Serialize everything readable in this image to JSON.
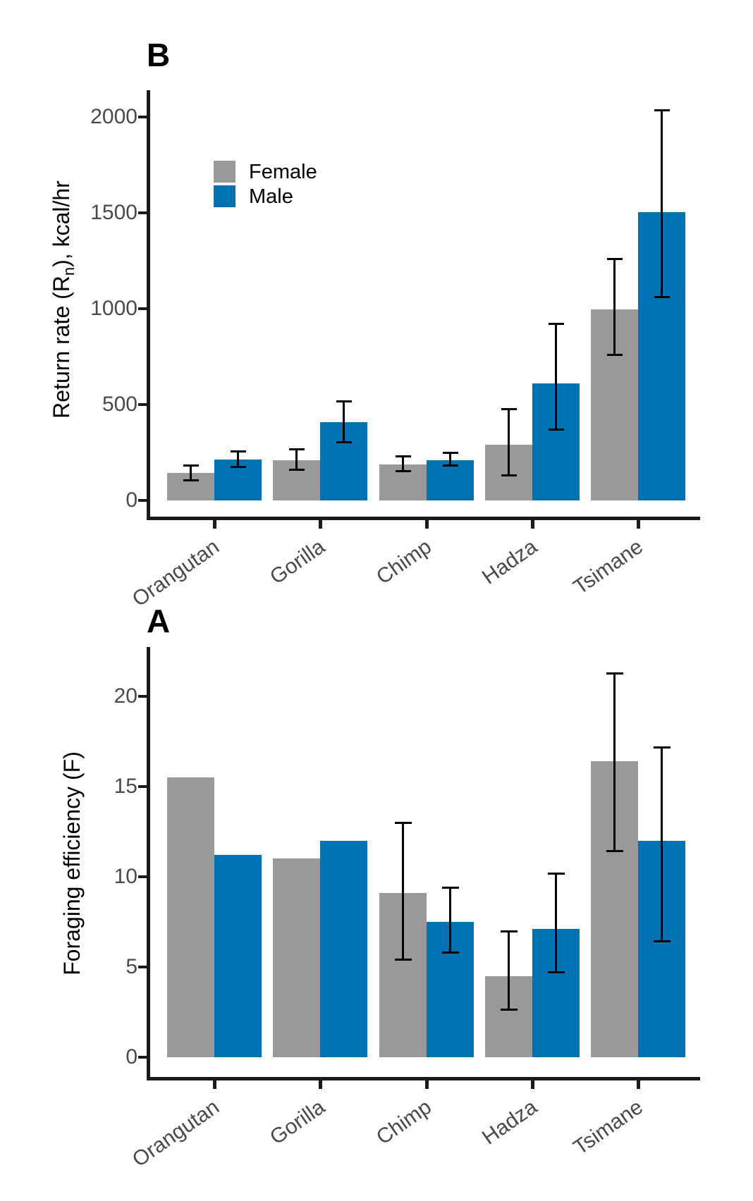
{
  "figure": {
    "background": "#ffffff",
    "axis_color": "#1b1b1b",
    "tick_text_color": "#4a4a4a"
  },
  "legend": {
    "position": "inside-top-left-of-panel-B",
    "items": [
      {
        "label": "Female",
        "color": "#999999"
      },
      {
        "label": "Male",
        "color": "#0072B2"
      }
    ]
  },
  "chart_data": [
    {
      "id": "panel-b",
      "panel_label": "B",
      "type": "bar",
      "grid": false,
      "categories": [
        "Orangutan",
        "Gorilla",
        "Chimp",
        "Hadza",
        "Tsimane"
      ],
      "ylabel_parts": [
        "Return rate (R",
        "n",
        "), kcal/hr"
      ],
      "yticks": [
        0,
        500,
        1000,
        1500,
        2000
      ],
      "ylim": [
        0,
        2140
      ],
      "series": [
        {
          "name": "Female",
          "color": "#999999",
          "values": [
            145,
            208,
            188,
            292,
            998
          ],
          "error_low": [
            104,
            157,
            151,
            127,
            757
          ],
          "error_high": [
            183,
            268,
            230,
            477,
            1262
          ]
        },
        {
          "name": "Male",
          "color": "#0072B2",
          "values": [
            214,
            408,
            210,
            610,
            1503
          ],
          "error_low": [
            172,
            300,
            180,
            368,
            1057
          ],
          "error_high": [
            257,
            520,
            249,
            924,
            2037
          ]
        }
      ]
    },
    {
      "id": "panel-a",
      "panel_label": "A",
      "type": "bar",
      "grid": false,
      "categories": [
        "Orangutan",
        "Gorilla",
        "Chimp",
        "Hadza",
        "Tsimane"
      ],
      "ylabel_parts": [
        "Foraging efficiency (F)",
        "",
        ""
      ],
      "yticks": [
        0,
        5,
        10,
        15,
        20
      ],
      "ylim": [
        0,
        22.7
      ],
      "series": [
        {
          "name": "Female",
          "color": "#999999",
          "values": [
            15.5,
            11.0,
            9.1,
            4.5,
            16.4
          ],
          "error_low": [
            null,
            null,
            5.4,
            2.6,
            11.4
          ],
          "error_high": [
            null,
            null,
            13.0,
            7.0,
            21.3
          ]
        },
        {
          "name": "Male",
          "color": "#0072B2",
          "values": [
            11.2,
            12.0,
            7.5,
            7.1,
            12.0
          ],
          "error_low": [
            null,
            null,
            5.8,
            4.7,
            6.4
          ],
          "error_high": [
            null,
            null,
            9.4,
            10.2,
            17.2
          ]
        }
      ]
    }
  ]
}
